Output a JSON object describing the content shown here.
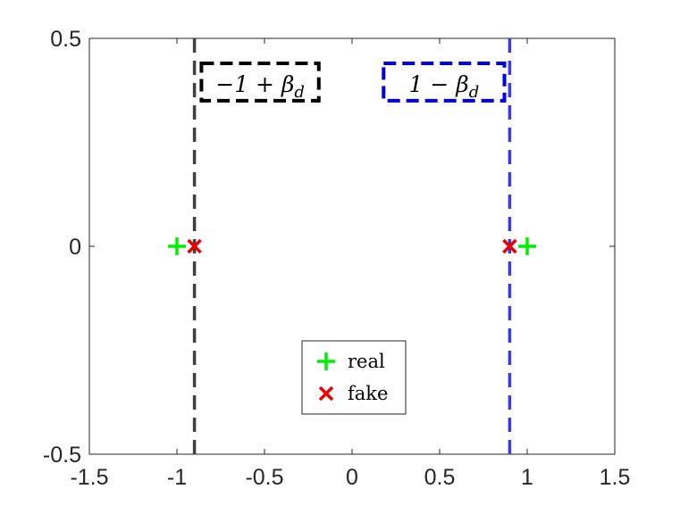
{
  "chart_data": {
    "type": "scatter",
    "title": "",
    "xlabel": "",
    "ylabel": "",
    "xlim": [
      -1.5,
      1.5
    ],
    "ylim": [
      -0.5,
      0.5
    ],
    "xticks": [
      -1.5,
      -1,
      -0.5,
      0,
      0.5,
      1,
      1.5
    ],
    "xtick_labels": [
      "-1.5",
      "-1",
      "-0.5",
      "0",
      "0.5",
      "1",
      "1.5"
    ],
    "yticks": [
      -0.5,
      0,
      0.5
    ],
    "ytick_labels": [
      "-0.5",
      "0",
      "0.5"
    ],
    "grid": false,
    "series": [
      {
        "name": "real",
        "marker": "plus",
        "color": "#00ee00",
        "x": [
          -1,
          1
        ],
        "y": [
          0,
          0
        ]
      },
      {
        "name": "fake",
        "marker": "x",
        "color": "#ee0000",
        "x": [
          -0.9,
          0.9
        ],
        "y": [
          0,
          0
        ]
      }
    ],
    "vlines": [
      {
        "x": -0.9,
        "color": "#404040",
        "style": "dashed"
      },
      {
        "x": 0.9,
        "color": "#3a3ae6",
        "style": "dashed"
      }
    ],
    "annotations": [
      {
        "text": "−1 + β",
        "subscript": "d",
        "color": "#000000",
        "x_range": [
          -0.86,
          -0.19
        ],
        "y_range": [
          0.35,
          0.44
        ]
      },
      {
        "text": "1 − β",
        "subscript": "d",
        "color": "#0000ee",
        "x_range": [
          0.18,
          0.87
        ],
        "y_range": [
          0.35,
          0.44
        ]
      }
    ],
    "legend": {
      "position": "bottom-center"
    }
  }
}
